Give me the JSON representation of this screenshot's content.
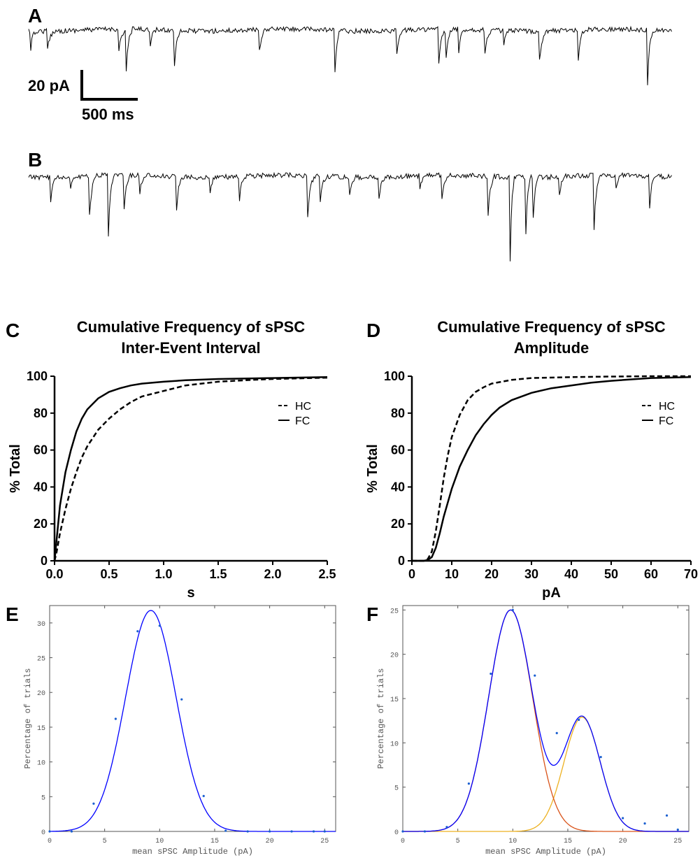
{
  "panels": {
    "a": {
      "letter": "A"
    },
    "b": {
      "letter": "B"
    },
    "c": {
      "letter": "C"
    },
    "d": {
      "letter": "D"
    },
    "e": {
      "letter": "E"
    },
    "f": {
      "letter": "F"
    }
  },
  "scalebar": {
    "amplitude": "20 pA",
    "time": "500 ms"
  },
  "chart_data": [
    {
      "id": "C",
      "type": "line",
      "title": "Cumulative Frequency of sPSC Inter-Event Interval",
      "title_lines": [
        "Cumulative Frequency of sPSC",
        "Inter-Event Interval"
      ],
      "xlabel": "s",
      "ylabel": "% Total",
      "xlim": [
        0,
        2.5
      ],
      "ylim": [
        0,
        100
      ],
      "xticks": [
        "0.0",
        "0.5",
        "1.0",
        "1.5",
        "2.0",
        "2.5"
      ],
      "yticks": [
        "0",
        "20",
        "40",
        "60",
        "80",
        "100"
      ],
      "legend": "right",
      "series": [
        {
          "name": "HC",
          "style": "dashed",
          "x": [
            0,
            0.02,
            0.05,
            0.1,
            0.15,
            0.2,
            0.25,
            0.3,
            0.4,
            0.5,
            0.6,
            0.7,
            0.8,
            1.0,
            1.2,
            1.5,
            1.8,
            2.0,
            2.5
          ],
          "y": [
            0,
            5,
            15,
            28,
            39,
            48,
            56,
            62,
            71,
            77,
            82,
            86,
            89,
            92,
            95,
            97,
            98,
            98.5,
            99.2
          ]
        },
        {
          "name": "FC",
          "style": "solid",
          "x": [
            0,
            0.02,
            0.05,
            0.1,
            0.15,
            0.2,
            0.25,
            0.3,
            0.4,
            0.5,
            0.6,
            0.7,
            0.8,
            1.0,
            1.2,
            1.5,
            2.0,
            2.5
          ],
          "y": [
            0,
            12,
            30,
            48,
            60,
            70,
            77,
            82,
            88,
            91.5,
            93.5,
            95,
            96,
            97,
            97.8,
            98.5,
            99,
            99.5
          ]
        }
      ]
    },
    {
      "id": "D",
      "type": "line",
      "title": "Cumulative Frequency of sPSC Amplitude",
      "title_lines": [
        "Cumulative Frequency of sPSC",
        "Amplitude"
      ],
      "xlabel": "pA",
      "ylabel": "% Total",
      "xlim": [
        0,
        70
      ],
      "ylim": [
        0,
        100
      ],
      "xticks": [
        "0",
        "10",
        "20",
        "30",
        "40",
        "50",
        "60",
        "70"
      ],
      "yticks": [
        "0",
        "20",
        "40",
        "60",
        "80",
        "100"
      ],
      "legend": "right",
      "series": [
        {
          "name": "HC",
          "style": "dashed",
          "x": [
            0,
            3,
            4,
            5,
            6,
            7,
            8,
            9,
            10,
            12,
            14,
            16,
            18,
            20,
            25,
            30,
            40,
            50,
            60,
            70
          ],
          "y": [
            0,
            0,
            1,
            5,
            16,
            30,
            45,
            57,
            67,
            79,
            87,
            91.5,
            94,
            96,
            98,
            99,
            99.5,
            99.8,
            100,
            100
          ]
        },
        {
          "name": "FC",
          "style": "solid",
          "x": [
            0,
            3,
            4,
            5,
            6,
            7,
            8,
            10,
            12,
            14,
            16,
            18,
            20,
            22,
            25,
            30,
            35,
            40,
            45,
            50,
            60,
            70
          ],
          "y": [
            0,
            0,
            0.5,
            2,
            7,
            15,
            24,
            39,
            51,
            60,
            68,
            74,
            79,
            83,
            87,
            91,
            93.5,
            95,
            96.5,
            97.5,
            99,
            99.5
          ]
        }
      ]
    },
    {
      "id": "E",
      "type": "scatter",
      "xlabel": "mean sPSC Amplitude (pA)",
      "ylabel": "Percentage of trials",
      "xlim": [
        0,
        26
      ],
      "ylim": [
        0,
        32.5
      ],
      "xticks": [
        "0",
        "5",
        "10",
        "15",
        "20",
        "25"
      ],
      "yticks": [
        "0",
        "5",
        "10",
        "15",
        "20",
        "25",
        "30"
      ],
      "points": {
        "x": [
          0,
          2,
          4,
          6,
          8,
          10,
          12,
          14,
          16,
          18,
          20,
          22,
          24,
          25
        ],
        "y": [
          0,
          0,
          4,
          16.2,
          28.8,
          29.6,
          19,
          5.1,
          0.1,
          0,
          0,
          0,
          0,
          0
        ]
      },
      "fits": [
        {
          "color": "#0000ff",
          "components": [
            {
              "amp": 31.8,
              "mu": 9.2,
              "sigma": 2.3
            }
          ]
        }
      ]
    },
    {
      "id": "F",
      "type": "scatter",
      "xlabel": "mean sPSC Amplitude (pA)",
      "ylabel": "Percentage of trials",
      "xlim": [
        0,
        26
      ],
      "ylim": [
        0,
        25.5
      ],
      "xticks": [
        "0",
        "5",
        "10",
        "15",
        "20",
        "25"
      ],
      "yticks": [
        "0",
        "5",
        "10",
        "15",
        "20",
        "25"
      ],
      "points": {
        "x": [
          0,
          2,
          4,
          6,
          8,
          10,
          12,
          14,
          16,
          18,
          20,
          22,
          24,
          25
        ],
        "y": [
          0,
          0,
          0.5,
          5.4,
          17.8,
          25,
          17.6,
          11.1,
          12.6,
          8.4,
          1.5,
          0.9,
          1.8,
          0.2
        ]
      },
      "fits": [
        {
          "color": "#0000ff",
          "components": [
            {
              "amp": 25,
              "mu": 9.8,
              "sigma": 2.0
            },
            {
              "amp": 12.9,
              "mu": 16.3,
              "sigma": 1.65
            }
          ]
        },
        {
          "color": "#d95319",
          "components": [
            {
              "amp": 25,
              "mu": 9.8,
              "sigma": 2.0
            }
          ]
        },
        {
          "color": "#edb120",
          "components": [
            {
              "amp": 12.9,
              "mu": 16.3,
              "sigma": 1.65
            }
          ]
        }
      ]
    }
  ]
}
